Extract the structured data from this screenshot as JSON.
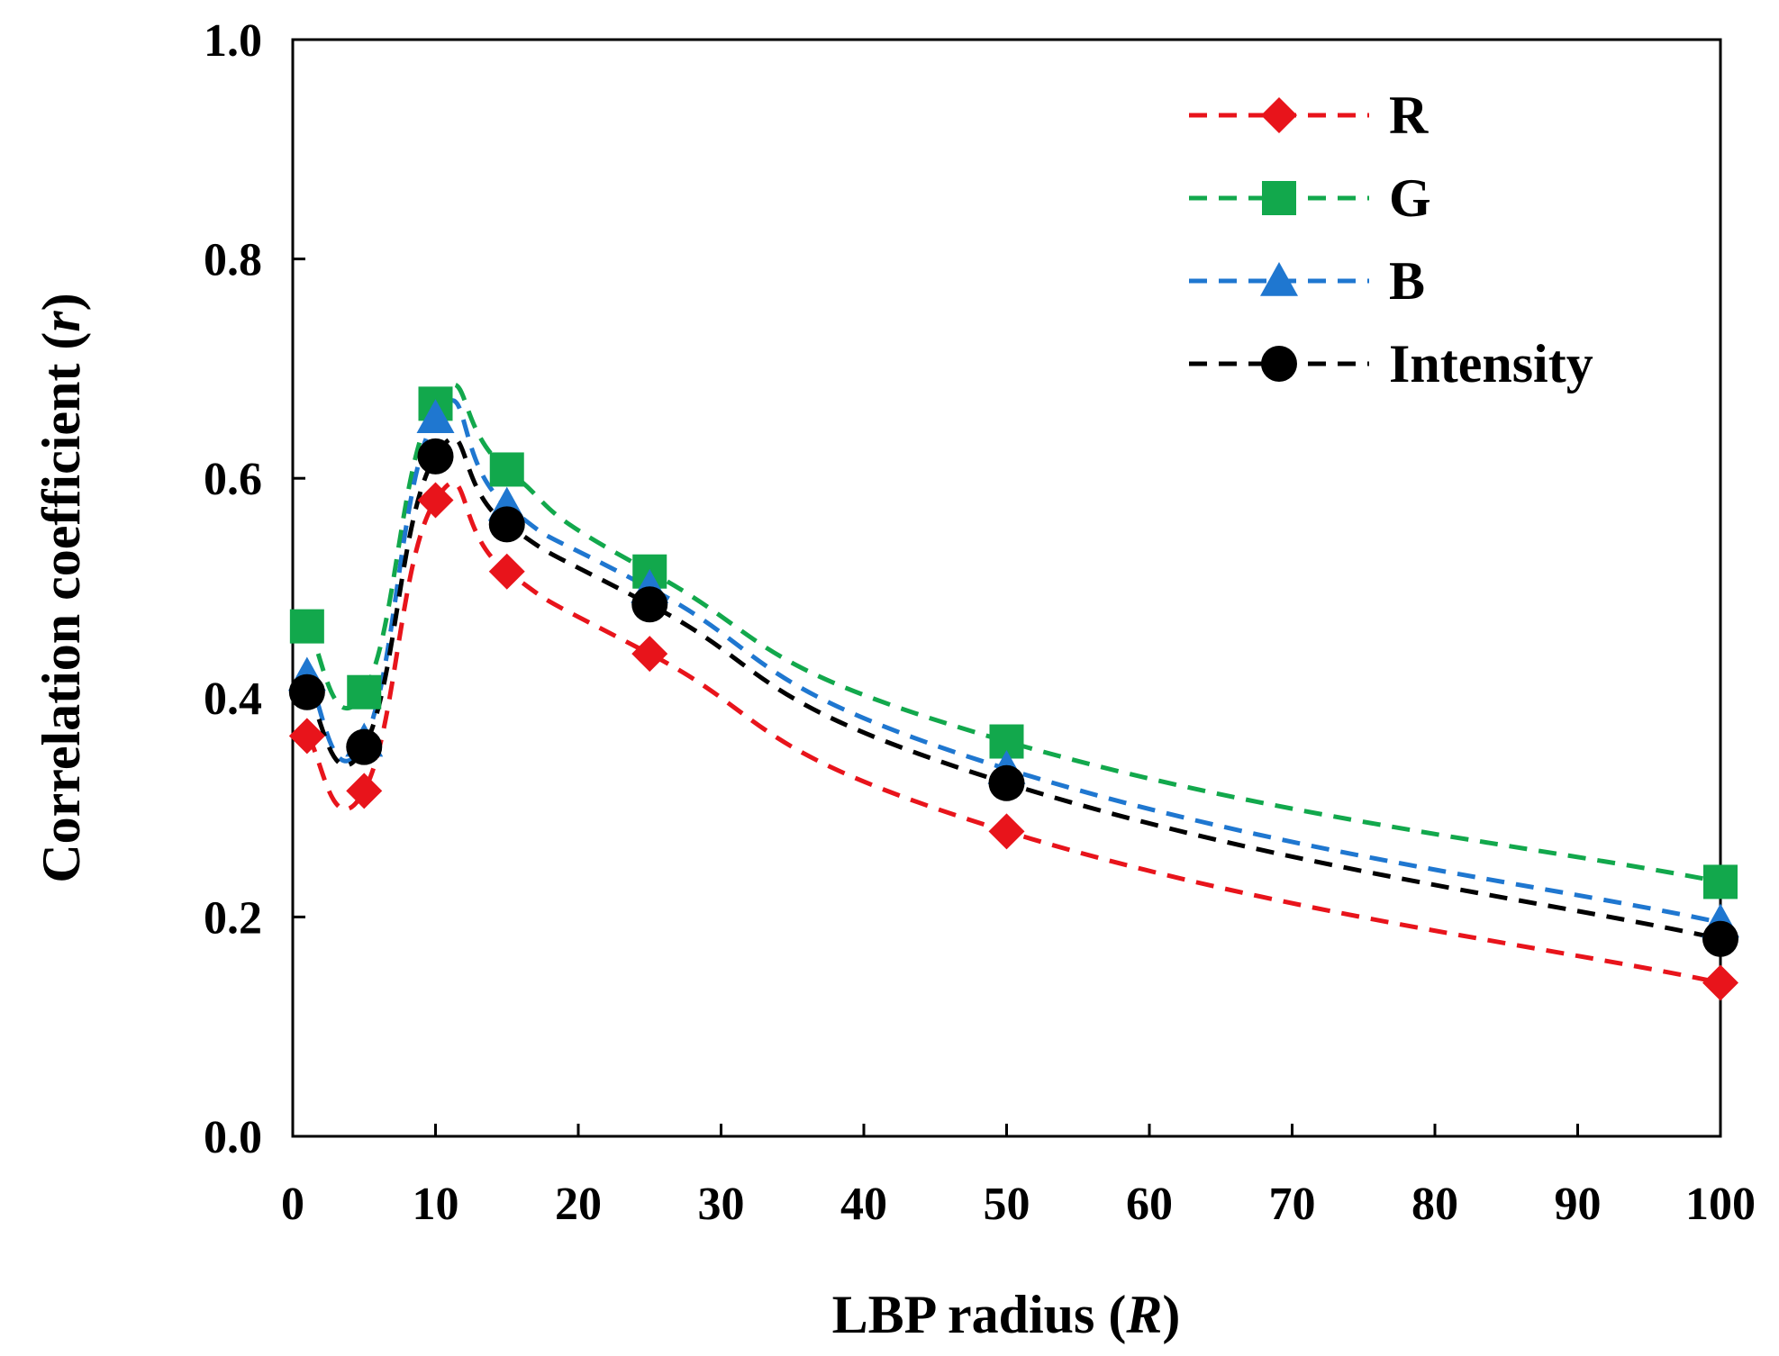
{
  "chart_data": {
    "type": "line",
    "xlabel": {
      "prefix": "LBP radius (",
      "var": "R",
      "suffix": ")"
    },
    "ylabel": {
      "prefix": "Correlation coefficient (",
      "var": "r",
      "suffix": ")"
    },
    "xlim": [
      0,
      100
    ],
    "ylim": [
      0.0,
      1.0
    ],
    "xticks": [
      "0",
      "10",
      "20",
      "30",
      "40",
      "50",
      "60",
      "70",
      "80",
      "90",
      "100"
    ],
    "yticks": [
      "0.0",
      "0.2",
      "0.4",
      "0.6",
      "0.8",
      "1.0"
    ],
    "grid": false,
    "legend_position": "top-right",
    "x": [
      1,
      5,
      10,
      15,
      25,
      50,
      100
    ],
    "series": [
      {
        "name": "R",
        "color": "#e8141b",
        "marker": "diamond",
        "values": [
          0.365,
          0.315,
          0.58,
          0.515,
          0.44,
          0.278,
          0.14
        ]
      },
      {
        "name": "G",
        "color": "#12a84c",
        "marker": "square",
        "values": [
          0.465,
          0.405,
          0.668,
          0.608,
          0.515,
          0.36,
          0.232
        ]
      },
      {
        "name": "B",
        "color": "#1f77d0",
        "marker": "triangle",
        "values": [
          0.42,
          0.36,
          0.655,
          0.575,
          0.5,
          0.335,
          0.195
        ]
      },
      {
        "name": "Intensity",
        "color": "#000000",
        "marker": "circle",
        "values": [
          0.405,
          0.355,
          0.62,
          0.558,
          0.485,
          0.322,
          0.18
        ]
      }
    ]
  }
}
